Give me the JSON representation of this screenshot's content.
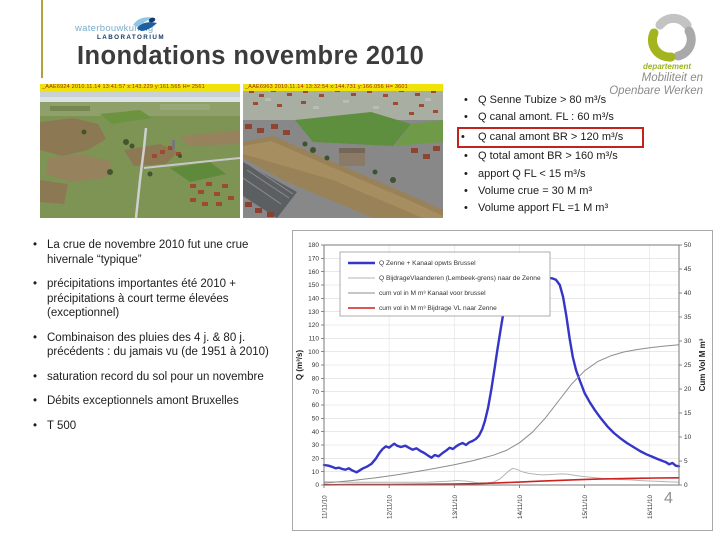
{
  "header": {
    "logo_waterbouwkundig": {
      "line1": "waterbouwkundig",
      "line2": "LABORATORIUM"
    },
    "title": "Inondations novembre 2010",
    "logo_departement": {
      "small": "departement",
      "line1": "Mobiliteit en",
      "line2": "Openbare Werken"
    }
  },
  "photos": {
    "left": {
      "overlay": "_AAE6924  2010.11.14 13:41:57   x:143.229 y:161.565    H= 2561"
    },
    "right": {
      "overlay": "_AAE6963  2010.11.14 13:32:54   x:144.731 y:166.056    H= 3601"
    }
  },
  "measurements": {
    "items": [
      "Q Senne Tubize > 80 m³/s",
      "Q canal amont. FL : 60 m³/s",
      "Q canal amont  BR > 120 m³/s",
      "Q total amont BR > 160 m³/s",
      "apport Q FL < 15 m³/s",
      "Volume crue = 30 M m³",
      "Volume apport FL =1 M m³"
    ],
    "highlighted_index": 2,
    "highlight_color": "#c0241c"
  },
  "notes": {
    "items": [
      "La crue de novembre 2010 fut une crue hivernale “typique”",
      "précipitations importantes été 2010 + précipitations à court terme élevées (exceptionnel)",
      "Combinaison des pluies des 4 j. & 80 j. précédents : du jamais vu (de 1951 à 2010)",
      "saturation record du sol pour un novembre",
      "Débits exceptionnels amont  Bruxelles",
      "T 500"
    ]
  },
  "page_number": "4",
  "decor": {
    "left_rule_color": "#b3a23c"
  },
  "chart_data": {
    "type": "line",
    "title": "",
    "xlabel": "",
    "ylabel_left": "Q (m³/s)",
    "ylabel_right": "Cum Vol M m³",
    "xlim": [
      0,
      5.45
    ],
    "ylim_left": [
      0,
      180
    ],
    "ytick_step_left": 10,
    "ylim_right": [
      0,
      50
    ],
    "ytick_step_right": 5,
    "x_ticks": [
      {
        "pos": 0,
        "label": "11/11/10"
      },
      {
        "pos": 1,
        "label": "12/11/10"
      },
      {
        "pos": 2,
        "label": "13/11/10"
      },
      {
        "pos": 3,
        "label": "14/11/10"
      },
      {
        "pos": 4,
        "label": "15/11/10"
      },
      {
        "pos": 5,
        "label": "16/11/10"
      }
    ],
    "grid": true,
    "legend_position": "top-left",
    "series": [
      {
        "name": "Q Zenne + Kanaal opwts Brussel",
        "axis": "left",
        "color": "#3535c8",
        "width": 2.4,
        "points": [
          [
            0,
            15
          ],
          [
            0.07,
            14.5
          ],
          [
            0.13,
            13.5
          ],
          [
            0.18,
            12.5
          ],
          [
            0.23,
            13
          ],
          [
            0.28,
            12
          ],
          [
            0.33,
            11.5
          ],
          [
            0.38,
            12.5
          ],
          [
            0.43,
            11
          ],
          [
            0.5,
            9.5
          ],
          [
            0.55,
            11
          ],
          [
            0.6,
            12.5
          ],
          [
            0.67,
            14
          ],
          [
            0.73,
            16
          ],
          [
            0.8,
            20
          ],
          [
            0.85,
            24
          ],
          [
            0.9,
            27
          ],
          [
            0.95,
            29
          ],
          [
            1,
            28
          ],
          [
            1.05,
            30
          ],
          [
            1.08,
            31
          ],
          [
            1.12,
            29.5
          ],
          [
            1.18,
            28.5
          ],
          [
            1.25,
            29.5
          ],
          [
            1.3,
            28
          ],
          [
            1.36,
            26.5
          ],
          [
            1.42,
            27.5
          ],
          [
            1.48,
            25.5
          ],
          [
            1.54,
            24
          ],
          [
            1.6,
            22
          ],
          [
            1.65,
            20.5
          ],
          [
            1.7,
            22.5
          ],
          [
            1.76,
            21.5
          ],
          [
            1.82,
            24
          ],
          [
            1.88,
            26
          ],
          [
            1.93,
            28
          ],
          [
            1.98,
            27
          ],
          [
            2.03,
            29
          ],
          [
            2.08,
            30.5
          ],
          [
            2.13,
            31.5
          ],
          [
            2.18,
            30
          ],
          [
            2.23,
            32
          ],
          [
            2.28,
            33
          ],
          [
            2.33,
            34.5
          ],
          [
            2.38,
            37
          ],
          [
            2.43,
            42
          ],
          [
            2.47,
            48
          ],
          [
            2.52,
            58
          ],
          [
            2.57,
            72
          ],
          [
            2.62,
            88
          ],
          [
            2.66,
            101
          ],
          [
            2.71,
            116
          ],
          [
            2.76,
            131
          ],
          [
            2.8,
            142
          ],
          [
            2.85,
            147
          ],
          [
            2.9,
            149.5
          ],
          [
            3,
            151
          ],
          [
            3.1,
            152
          ],
          [
            3.2,
            153
          ],
          [
            3.32,
            154.5
          ],
          [
            3.42,
            155.5
          ],
          [
            3.5,
            155
          ],
          [
            3.56,
            154
          ],
          [
            3.62,
            150
          ],
          [
            3.67,
            141
          ],
          [
            3.72,
            127
          ],
          [
            3.77,
            110
          ],
          [
            3.82,
            96
          ],
          [
            3.87,
            86
          ],
          [
            3.93,
            78
          ],
          [
            4,
            69
          ],
          [
            4.08,
            62
          ],
          [
            4.16,
            56
          ],
          [
            4.25,
            50
          ],
          [
            4.35,
            44
          ],
          [
            4.45,
            39
          ],
          [
            4.55,
            35
          ],
          [
            4.65,
            31.5
          ],
          [
            4.75,
            28.5
          ],
          [
            4.85,
            25.5
          ],
          [
            4.95,
            23
          ],
          [
            5.05,
            21
          ],
          [
            5.12,
            19.5
          ],
          [
            5.2,
            18
          ],
          [
            5.25,
            17
          ],
          [
            5.3,
            15.5
          ],
          [
            5.35,
            16.5
          ],
          [
            5.4,
            14.5
          ],
          [
            5.45,
            14
          ]
        ]
      },
      {
        "name": "Q BijdrageVlaanderen (Lembeek-grens)  naar de Zenne",
        "axis": "left",
        "color": "#b4b4b4",
        "width": 1,
        "points": [
          [
            0,
            2.5
          ],
          [
            0.4,
            2
          ],
          [
            0.8,
            2
          ],
          [
            1.2,
            2
          ],
          [
            1.6,
            2.2
          ],
          [
            1.9,
            2.8
          ],
          [
            2.05,
            3.4
          ],
          [
            2.2,
            2.8
          ],
          [
            2.35,
            1.8
          ],
          [
            2.5,
            1.5
          ],
          [
            2.6,
            2.2
          ],
          [
            2.7,
            4.5
          ],
          [
            2.78,
            8
          ],
          [
            2.85,
            11
          ],
          [
            2.9,
            12.5
          ],
          [
            2.97,
            11.5
          ],
          [
            3.05,
            9.8
          ],
          [
            3.15,
            8.6
          ],
          [
            3.25,
            8
          ],
          [
            3.35,
            7.6
          ],
          [
            3.45,
            7.8
          ],
          [
            3.55,
            8
          ],
          [
            3.65,
            8.3
          ],
          [
            3.75,
            8
          ],
          [
            3.85,
            7.2
          ],
          [
            3.95,
            6.6
          ],
          [
            4.1,
            5.8
          ],
          [
            4.3,
            4.8
          ],
          [
            4.5,
            4.2
          ],
          [
            4.7,
            3.8
          ],
          [
            4.9,
            3.2
          ],
          [
            5.1,
            2.8
          ],
          [
            5.3,
            2.3
          ],
          [
            5.45,
            2
          ]
        ]
      },
      {
        "name": "cum vol in M m³ Kanaal voor brussel",
        "axis": "right",
        "color": "#8c8c8c",
        "width": 1,
        "points": [
          [
            0,
            0.4
          ],
          [
            0.4,
            0.9
          ],
          [
            0.8,
            1.5
          ],
          [
            1.2,
            2.3
          ],
          [
            1.6,
            3.2
          ],
          [
            2,
            4.2
          ],
          [
            2.3,
            5.1
          ],
          [
            2.6,
            6.2
          ],
          [
            2.8,
            7.2
          ],
          [
            3,
            8.8
          ],
          [
            3.2,
            11
          ],
          [
            3.4,
            14
          ],
          [
            3.6,
            17.5
          ],
          [
            3.8,
            21
          ],
          [
            4,
            23.8
          ],
          [
            4.2,
            25.7
          ],
          [
            4.4,
            26.9
          ],
          [
            4.6,
            27.7
          ],
          [
            4.8,
            28.2
          ],
          [
            5,
            28.6
          ],
          [
            5.2,
            28.9
          ],
          [
            5.45,
            29.2
          ]
        ]
      },
      {
        "name": "cum vol in M m³ Bijdrage VL naar Zenne",
        "axis": "right",
        "color": "#cc2222",
        "width": 1.6,
        "points": [
          [
            0,
            0.05
          ],
          [
            0.5,
            0.08
          ],
          [
            1,
            0.1
          ],
          [
            1.5,
            0.15
          ],
          [
            2,
            0.2
          ],
          [
            2.4,
            0.3
          ],
          [
            2.7,
            0.45
          ],
          [
            3,
            0.6
          ],
          [
            3.3,
            0.8
          ],
          [
            3.6,
            0.95
          ],
          [
            3.9,
            1.1
          ],
          [
            4.2,
            1.22
          ],
          [
            4.5,
            1.32
          ],
          [
            4.8,
            1.4
          ],
          [
            5.1,
            1.45
          ],
          [
            5.45,
            1.5
          ]
        ]
      }
    ]
  }
}
